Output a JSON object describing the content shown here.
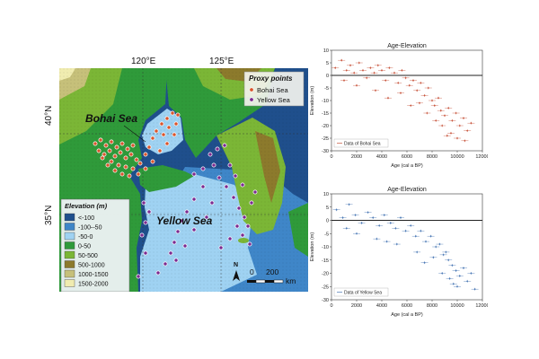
{
  "map": {
    "lon_labels": [
      "120°E",
      "125°E"
    ],
    "lat_labels": [
      "40°N",
      "35°N"
    ],
    "sea_labels": {
      "bohai": "Bohai Sea",
      "yellow": "Yellow Sea"
    },
    "proxy_legend": {
      "title": "Proxy points",
      "items": [
        {
          "label": "Bohai Sea",
          "color": "#d9542c"
        },
        {
          "label": "Yellow Sea",
          "color": "#7b2a90"
        }
      ]
    },
    "elevation_legend": {
      "title": "Elevation (m)",
      "items": [
        {
          "label": "<-100",
          "color": "#1f4f8c"
        },
        {
          "label": "-100--50",
          "color": "#3f86c8"
        },
        {
          "label": "-50-0",
          "color": "#9fd2f2"
        },
        {
          "label": "0-50",
          "color": "#2f9a3a"
        },
        {
          "label": "50-500",
          "color": "#7bb636"
        },
        {
          "label": "500-1000",
          "color": "#8c7a2c"
        },
        {
          "label": "1000-1500",
          "color": "#c6c07a"
        },
        {
          "label": "1500-2000",
          "color": "#f0ecb0"
        }
      ]
    },
    "north_label": "N",
    "scale_bar": {
      "zero": "0",
      "value": "200",
      "unit": "km"
    }
  },
  "chart_data": [
    {
      "type": "scatter",
      "title": "Age-Elevation",
      "xlabel": "Age (cal a BP)",
      "ylabel": "Elevation (m)",
      "xlim": [
        0,
        12000
      ],
      "ylim": [
        -30,
        10
      ],
      "x_ticks": [
        0,
        2000,
        4000,
        6000,
        8000,
        10000,
        12000
      ],
      "y_ticks": [
        10,
        5,
        0,
        -5,
        -10,
        -15,
        -20,
        -25,
        -30
      ],
      "reference_line_y": 0,
      "legend": "Data of Bohai Sea",
      "legend_position": "bottom-left",
      "color": "#c8553d",
      "points": [
        [
          300,
          3
        ],
        [
          800,
          6
        ],
        [
          1200,
          2
        ],
        [
          1500,
          4
        ],
        [
          1800,
          1
        ],
        [
          2200,
          5
        ],
        [
          2500,
          2
        ],
        [
          2800,
          -1
        ],
        [
          3100,
          3
        ],
        [
          3400,
          1
        ],
        [
          3700,
          4
        ],
        [
          4000,
          2
        ],
        [
          4300,
          -2
        ],
        [
          4600,
          3
        ],
        [
          5000,
          1
        ],
        [
          5300,
          -3
        ],
        [
          5600,
          2
        ],
        [
          5900,
          -1
        ],
        [
          6200,
          -4
        ],
        [
          6500,
          -2
        ],
        [
          6800,
          -6
        ],
        [
          7100,
          -3
        ],
        [
          7400,
          -8
        ],
        [
          7700,
          -5
        ],
        [
          8000,
          -10
        ],
        [
          8200,
          -12
        ],
        [
          8500,
          -9
        ],
        [
          8700,
          -14
        ],
        [
          9000,
          -16
        ],
        [
          9300,
          -13
        ],
        [
          9600,
          -18
        ],
        [
          9900,
          -15
        ],
        [
          10200,
          -20
        ],
        [
          10500,
          -17
        ],
        [
          10800,
          -22
        ],
        [
          11100,
          -19
        ],
        [
          2000,
          -4
        ],
        [
          3500,
          -6
        ],
        [
          5500,
          -7
        ],
        [
          7000,
          -11
        ],
        [
          8800,
          -20
        ],
        [
          9500,
          -23
        ],
        [
          10000,
          -25
        ],
        [
          1000,
          -2
        ],
        [
          4500,
          -9
        ],
        [
          6300,
          -12
        ],
        [
          7600,
          -15
        ],
        [
          8300,
          -18
        ],
        [
          9200,
          -24
        ],
        [
          10600,
          -26
        ]
      ]
    },
    {
      "type": "scatter",
      "title": "Age-Elevation",
      "xlabel": "Age (cal a BP)",
      "ylabel": "Elevation (m)",
      "xlim": [
        0,
        12000
      ],
      "ylim": [
        -30,
        10
      ],
      "x_ticks": [
        0,
        2000,
        4000,
        6000,
        8000,
        10000,
        12000
      ],
      "y_ticks": [
        10,
        5,
        0,
        -5,
        -10,
        -15,
        -20,
        -25,
        -30
      ],
      "reference_line_y": 0,
      "legend": "Data of Yellow Sea",
      "legend_position": "bottom-left",
      "color": "#4a78b5",
      "points": [
        [
          400,
          4
        ],
        [
          900,
          1
        ],
        [
          1400,
          6
        ],
        [
          1900,
          2
        ],
        [
          2400,
          -1
        ],
        [
          2900,
          3
        ],
        [
          3300,
          1
        ],
        [
          3800,
          -2
        ],
        [
          4200,
          2
        ],
        [
          4700,
          -1
        ],
        [
          5100,
          -3
        ],
        [
          5500,
          1
        ],
        [
          5900,
          -4
        ],
        [
          6300,
          -2
        ],
        [
          6700,
          -6
        ],
        [
          7100,
          -4
        ],
        [
          7500,
          -8
        ],
        [
          7900,
          -6
        ],
        [
          8300,
          -10
        ],
        [
          8600,
          -9
        ],
        [
          8900,
          -13
        ],
        [
          9100,
          -12
        ],
        [
          9300,
          -15
        ],
        [
          9600,
          -17
        ],
        [
          9900,
          -19
        ],
        [
          10200,
          -21
        ],
        [
          10500,
          -18
        ],
        [
          10800,
          -23
        ],
        [
          11100,
          -20
        ],
        [
          2000,
          -5
        ],
        [
          3600,
          -7
        ],
        [
          5200,
          -9
        ],
        [
          6800,
          -12
        ],
        [
          8100,
          -14
        ],
        [
          9400,
          -22
        ],
        [
          10000,
          -25
        ],
        [
          1200,
          -3
        ],
        [
          4400,
          -8
        ],
        [
          7400,
          -16
        ],
        [
          8800,
          -20
        ],
        [
          9700,
          -24
        ],
        [
          11400,
          -26
        ]
      ]
    }
  ]
}
